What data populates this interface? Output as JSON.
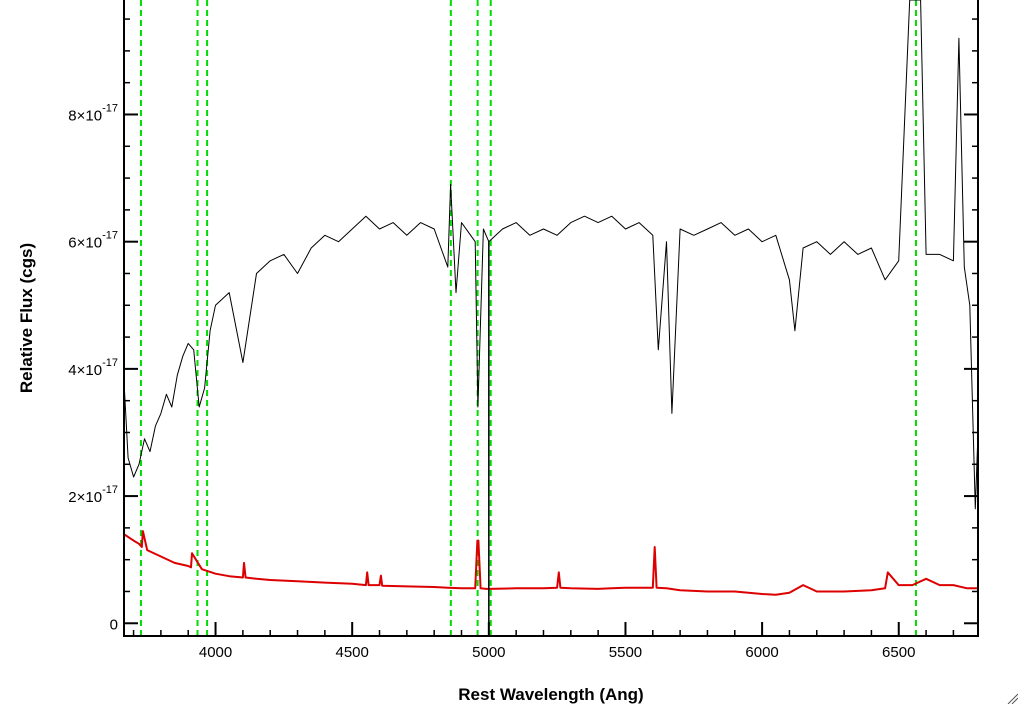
{
  "chart_data": {
    "type": "line",
    "title": "",
    "xlabel": "Rest Wavelength (Ang)",
    "ylabel": "Relative Flux (cgs)",
    "xlim": [
      3665,
      6790
    ],
    "ylim": [
      -0.2,
      9.8
    ],
    "y_scale_exponent": -17,
    "x_ticks": [
      4000,
      4500,
      5000,
      5500,
      6000,
      6500
    ],
    "y_ticks": [
      {
        "value": 0,
        "mantissa": "0",
        "exponent": ""
      },
      {
        "value": 2,
        "mantissa": "2×10",
        "exponent": "-17"
      },
      {
        "value": 4,
        "mantissa": "4×10",
        "exponent": "-17"
      },
      {
        "value": 6,
        "mantissa": "6×10",
        "exponent": "-17"
      },
      {
        "value": 8,
        "mantissa": "8×10",
        "exponent": "-17"
      }
    ],
    "grid": false,
    "line_markers": {
      "color": "#00dd00",
      "style": "dashed",
      "x": [
        3727,
        3934,
        3969,
        4861,
        4959,
        5007,
        6563
      ]
    },
    "vertical_line": {
      "x": 5000,
      "color": "#000000"
    },
    "series": [
      {
        "color": "#000000",
        "x": [
          3665,
          3680,
          3700,
          3720,
          3740,
          3760,
          3780,
          3800,
          3820,
          3840,
          3860,
          3880,
          3900,
          3920,
          3940,
          3960,
          3980,
          4000,
          4050,
          4100,
          4150,
          4200,
          4250,
          4300,
          4350,
          4400,
          4450,
          4500,
          4550,
          4600,
          4650,
          4700,
          4750,
          4800,
          4850,
          4860,
          4880,
          4900,
          4950,
          4960,
          4980,
          5000,
          5050,
          5100,
          5150,
          5200,
          5250,
          5300,
          5350,
          5400,
          5450,
          5500,
          5550,
          5600,
          5620,
          5650,
          5670,
          5700,
          5750,
          5800,
          5850,
          5900,
          5950,
          6000,
          6050,
          6100,
          6120,
          6150,
          6200,
          6250,
          6300,
          6350,
          6400,
          6450,
          6500,
          6540,
          6560,
          6580,
          6600,
          6650,
          6700,
          6720,
          6740,
          6760,
          6780,
          6790
        ],
        "values": [
          3.8,
          2.6,
          2.3,
          2.5,
          2.9,
          2.7,
          3.1,
          3.3,
          3.6,
          3.4,
          3.9,
          4.2,
          4.4,
          4.3,
          3.4,
          3.7,
          4.6,
          5.0,
          5.2,
          4.1,
          5.5,
          5.7,
          5.8,
          5.5,
          5.9,
          6.1,
          6.0,
          6.2,
          6.4,
          6.2,
          6.3,
          6.1,
          6.3,
          6.2,
          5.6,
          6.9,
          5.2,
          6.3,
          6.0,
          3.4,
          6.2,
          6.0,
          6.2,
          6.3,
          6.1,
          6.2,
          6.1,
          6.3,
          6.4,
          6.3,
          6.4,
          6.2,
          6.3,
          6.1,
          4.3,
          6.0,
          3.3,
          6.2,
          6.1,
          6.2,
          6.3,
          6.1,
          6.2,
          6.0,
          6.1,
          5.4,
          4.6,
          5.9,
          6.0,
          5.8,
          6.0,
          5.8,
          5.9,
          5.4,
          5.7,
          9.8,
          9.8,
          9.8,
          5.8,
          5.8,
          5.7,
          9.2,
          5.6,
          5.0,
          1.8,
          3.0
        ]
      },
      {
        "color": "#dd0000",
        "x": [
          3665,
          3700,
          3720,
          3730,
          3734,
          3750,
          3800,
          3850,
          3900,
          3910,
          3914,
          3950,
          4000,
          4050,
          4100,
          4104,
          4110,
          4150,
          4200,
          4300,
          4400,
          4500,
          4550,
          4555,
          4560,
          4600,
          4605,
          4610,
          4700,
          4800,
          4850,
          4900,
          4950,
          4958,
          4962,
          4970,
          4990,
          5000,
          5100,
          5200,
          5250,
          5256,
          5262,
          5300,
          5400,
          5450,
          5500,
          5600,
          5607,
          5614,
          5650,
          5700,
          5800,
          5900,
          5950,
          6000,
          6050,
          6100,
          6150,
          6200,
          6300,
          6400,
          6450,
          6460,
          6500,
          6550,
          6600,
          6650,
          6700,
          6750,
          6790
        ],
        "values": [
          1.4,
          1.3,
          1.25,
          1.2,
          1.45,
          1.15,
          1.05,
          0.95,
          0.9,
          0.88,
          1.1,
          0.85,
          0.78,
          0.74,
          0.72,
          0.95,
          0.72,
          0.7,
          0.68,
          0.66,
          0.64,
          0.62,
          0.6,
          0.8,
          0.6,
          0.6,
          0.75,
          0.59,
          0.58,
          0.57,
          0.56,
          0.55,
          0.55,
          1.3,
          1.3,
          0.55,
          0.54,
          0.54,
          0.55,
          0.55,
          0.56,
          0.8,
          0.56,
          0.55,
          0.54,
          0.55,
          0.56,
          0.56,
          1.2,
          0.56,
          0.55,
          0.52,
          0.5,
          0.5,
          0.48,
          0.46,
          0.45,
          0.48,
          0.6,
          0.5,
          0.5,
          0.52,
          0.55,
          0.8,
          0.6,
          0.6,
          0.7,
          0.6,
          0.6,
          0.55,
          0.55
        ]
      }
    ]
  }
}
